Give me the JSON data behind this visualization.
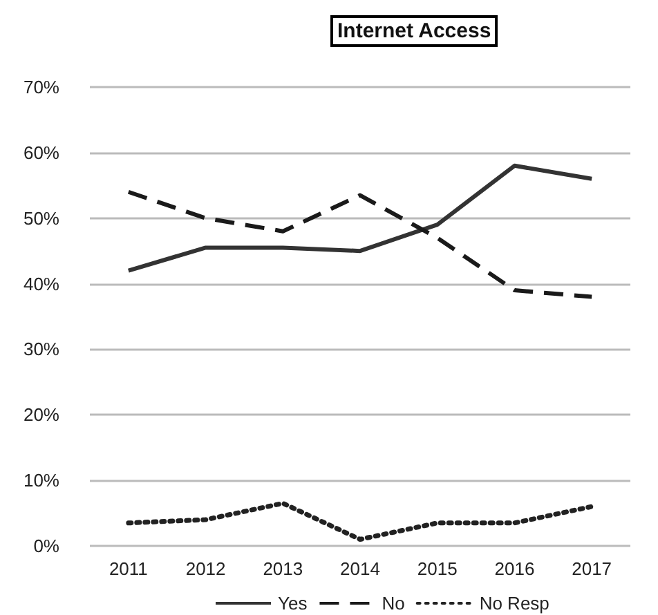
{
  "chart_data": {
    "type": "line",
    "title": "Internet Access",
    "categories": [
      "2011",
      "2012",
      "2013",
      "2014",
      "2015",
      "2016",
      "2017"
    ],
    "series": [
      {
        "name": "Yes",
        "color": "#333333",
        "line_style": "solid",
        "values": [
          42,
          45.5,
          45.5,
          45,
          49,
          58,
          56
        ]
      },
      {
        "name": "No",
        "color": "#1a1a1a",
        "line_style": "dashed",
        "values": [
          54,
          50,
          48,
          53.5,
          47,
          39,
          38
        ]
      },
      {
        "name": "No Resp",
        "color": "#222222",
        "line_style": "dotted",
        "values": [
          3.5,
          4,
          6.5,
          1,
          3.5,
          3.5,
          6
        ]
      }
    ],
    "ylim": [
      0,
      70
    ],
    "yticks": [
      {
        "value": 0,
        "label": "0%"
      },
      {
        "value": 10,
        "label": "10%"
      },
      {
        "value": 20,
        "label": "20%"
      },
      {
        "value": 30,
        "label": "30%"
      },
      {
        "value": 40,
        "label": "40%"
      },
      {
        "value": 50,
        "label": "50%"
      },
      {
        "value": 60,
        "label": "60%"
      },
      {
        "value": 70,
        "label": "70%"
      }
    ],
    "grid": "y",
    "legend": "bottom",
    "marker": "none"
  }
}
